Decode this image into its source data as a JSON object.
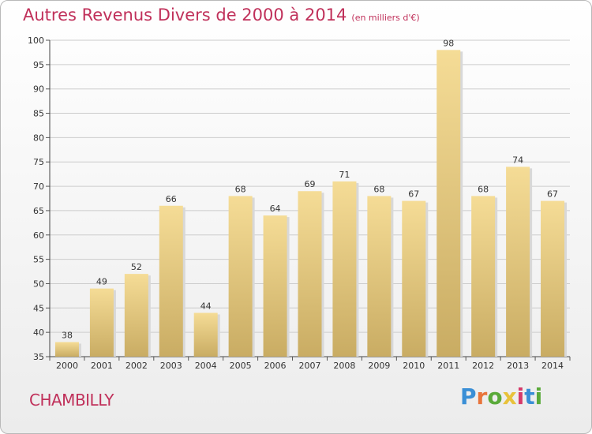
{
  "header": {
    "title": "Autres Revenus Divers de 2000 à 2014",
    "subtitle": "(en milliers d'€)"
  },
  "footer": {
    "city": "CHAMBILLY",
    "logo_letters": [
      "P",
      "r",
      "o",
      "x",
      "i",
      "t",
      "i"
    ]
  },
  "colors": {
    "title": "#c0305a",
    "bar_light": "#f5dc96",
    "bar_dark": "#c9ac63",
    "grid": "#cccccc",
    "logo": [
      "#3a8fd6",
      "#e8743b",
      "#5aaa3a",
      "#e8c23b",
      "#d63a6a",
      "#3a8fd6",
      "#5aaa3a"
    ]
  },
  "chart_data": {
    "type": "bar",
    "title": "Autres Revenus Divers de 2000 à 2014",
    "subtitle": "(en milliers d'€)",
    "categories": [
      "2000",
      "2001",
      "2002",
      "2003",
      "2004",
      "2005",
      "2006",
      "2007",
      "2008",
      "2009",
      "2010",
      "2011",
      "2012",
      "2013",
      "2014"
    ],
    "values": [
      38,
      49,
      52,
      66,
      44,
      68,
      64,
      69,
      71,
      68,
      67,
      98,
      68,
      74,
      67
    ],
    "ylim": [
      35,
      100
    ],
    "yticks": [
      35,
      40,
      45,
      50,
      55,
      60,
      65,
      70,
      75,
      80,
      85,
      90,
      95,
      100
    ],
    "grid": true,
    "xlabel": "",
    "ylabel": ""
  }
}
